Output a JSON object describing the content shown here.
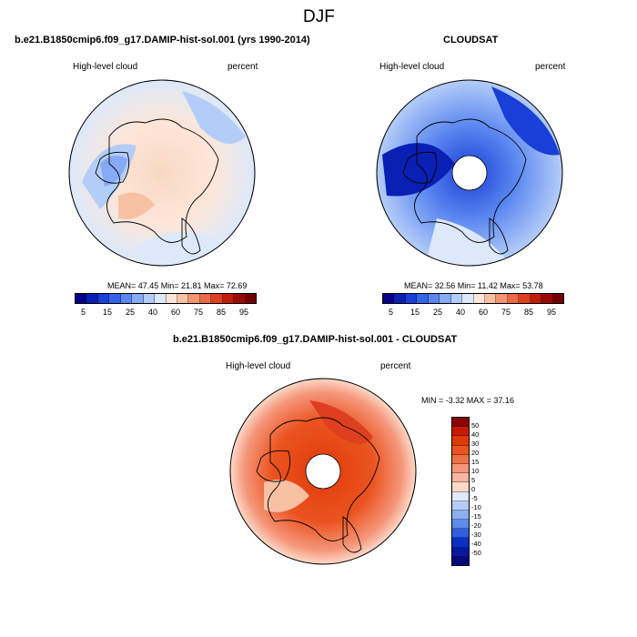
{
  "title": "DJF",
  "panel_a": {
    "case_title": "b.e21.B1850cmip6.f09_g17.DAMIP-hist-sol.001 (yrs 1990-2014)",
    "var": "High-level cloud",
    "units": "percent",
    "stats": "MEAN=  47.45  Min=  21.81  Max=  72.69"
  },
  "panel_b": {
    "case_title": "CLOUDSAT",
    "var": "High-level cloud",
    "units": "percent",
    "stats": "MEAN=  32.56  Min=  11.42  Max=  53.78"
  },
  "panel_c": {
    "case_title": "b.e21.B1850cmip6.f09_g17.DAMIP-hist-sol.001 - CLOUDSAT",
    "var": "High-level cloud",
    "units": "percent",
    "stats": "MIN = -3.32 MAX =  37.16"
  },
  "colorbar_main": {
    "labels": [
      "5",
      "15",
      "25",
      "40",
      "60",
      "75",
      "85",
      "95"
    ],
    "colors": [
      "#08008a",
      "#0a1fb4",
      "#1a3fd6",
      "#3563e8",
      "#5a86f0",
      "#86aaf5",
      "#b4cdf8",
      "#dce9fa",
      "#fde6d8",
      "#f8c1a4",
      "#f29472",
      "#ea6a47",
      "#dd3f20",
      "#c21b06",
      "#9a0904",
      "#720000"
    ]
  },
  "colorbar_diff": {
    "labels": [
      "50",
      "40",
      "30",
      "20",
      "15",
      "10",
      "5",
      "0",
      "-5",
      "-10",
      "-15",
      "-20",
      "-30",
      "-40",
      "-50"
    ],
    "colors": [
      "#8e0000",
      "#c81a00",
      "#e03a08",
      "#eb5420",
      "#f07045",
      "#f5967a",
      "#f8b79f",
      "#fcd9c8",
      "#dfeafb",
      "#b6cdf7",
      "#8ab0f2",
      "#5d8ceb",
      "#315fe0",
      "#0d30c4",
      "#0a17a0",
      "#050a78"
    ]
  },
  "chart_data": [
    {
      "type": "heatmap",
      "projection": "north polar stereographic",
      "title": "High-level cloud",
      "units": "percent",
      "mean": 47.45,
      "min": 21.81,
      "max": 72.69
    },
    {
      "type": "heatmap",
      "projection": "north polar stereographic",
      "title": "High-level cloud",
      "units": "percent",
      "mean": 32.56,
      "min": 11.42,
      "max": 53.78
    },
    {
      "type": "heatmap",
      "projection": "north polar stereographic",
      "title": "High-level cloud",
      "units": "percent",
      "min": -3.32,
      "max": 37.16
    }
  ]
}
